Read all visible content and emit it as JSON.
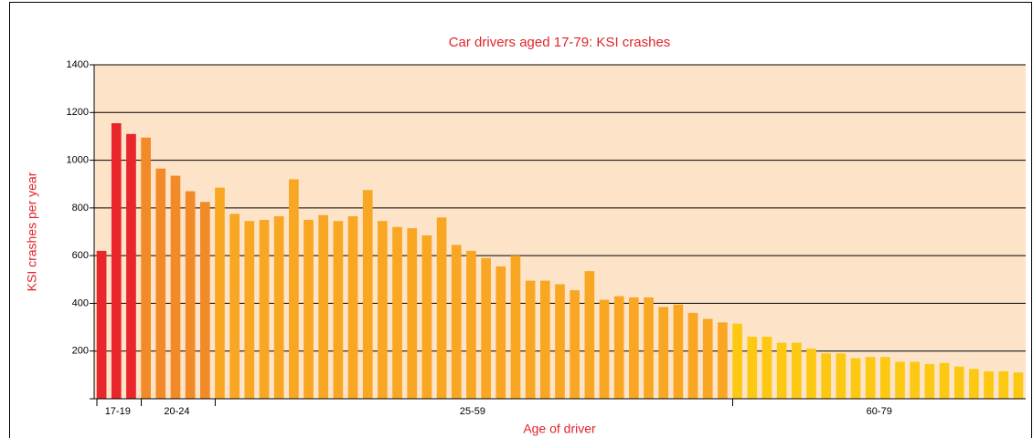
{
  "chart_data": {
    "type": "bar",
    "title": "Car drivers aged 17-79: KSI crashes",
    "y_label": "KSI crashes per year",
    "x_label": "Age of driver",
    "ylim": [
      0,
      1400
    ],
    "yticks": [
      200,
      400,
      600,
      800,
      1000,
      1200,
      1400
    ],
    "grid": true,
    "background": "#fde4c9",
    "groups": [
      {
        "label": "17-19",
        "color": "#e8262b",
        "values": [
          620,
          1155,
          1110
        ]
      },
      {
        "label": "20-24",
        "color": "#f28a28",
        "values": [
          1095,
          965,
          935,
          870,
          825
        ]
      },
      {
        "label": "25-59",
        "color": "#f9a623",
        "values": [
          885,
          775,
          745,
          750,
          765,
          920,
          750,
          770,
          745,
          765,
          875,
          745,
          720,
          715,
          685,
          760,
          645,
          620,
          590,
          555,
          600,
          495,
          495,
          480,
          455,
          535,
          415,
          430,
          425,
          425,
          385,
          395,
          360,
          335,
          320
        ]
      },
      {
        "label": "60-79",
        "color": "#fcc812",
        "values": [
          315,
          260,
          260,
          235,
          235,
          210,
          190,
          190,
          170,
          175,
          175,
          155,
          155,
          145,
          150,
          135,
          125,
          115,
          115,
          110
        ]
      }
    ]
  }
}
